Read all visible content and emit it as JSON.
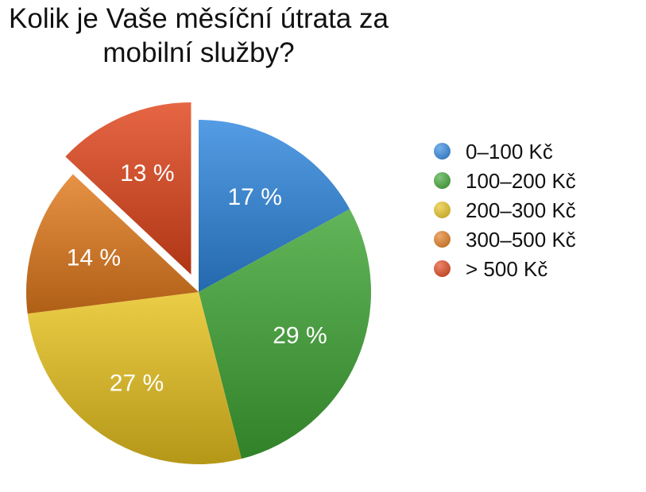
{
  "chart_data": {
    "type": "pie",
    "title_lines": [
      "Kolik je Vaše měsíční útrata za",
      "mobilní služby?"
    ],
    "categories": [
      "0–100 Kč",
      "100–200 Kč",
      "200–300 Kč",
      "300–500 Kč",
      "> 500 Kč"
    ],
    "values": [
      17,
      29,
      27,
      14,
      13
    ],
    "value_labels": [
      "17 %",
      "29 %",
      "27 %",
      "14 %",
      "13 %"
    ],
    "colors": [
      "#2e86de",
      "#3fa535",
      "#e8c21f",
      "#e27a1c",
      "#e0451b"
    ],
    "exploded": "> 500 Kč",
    "legend_position": "right"
  }
}
